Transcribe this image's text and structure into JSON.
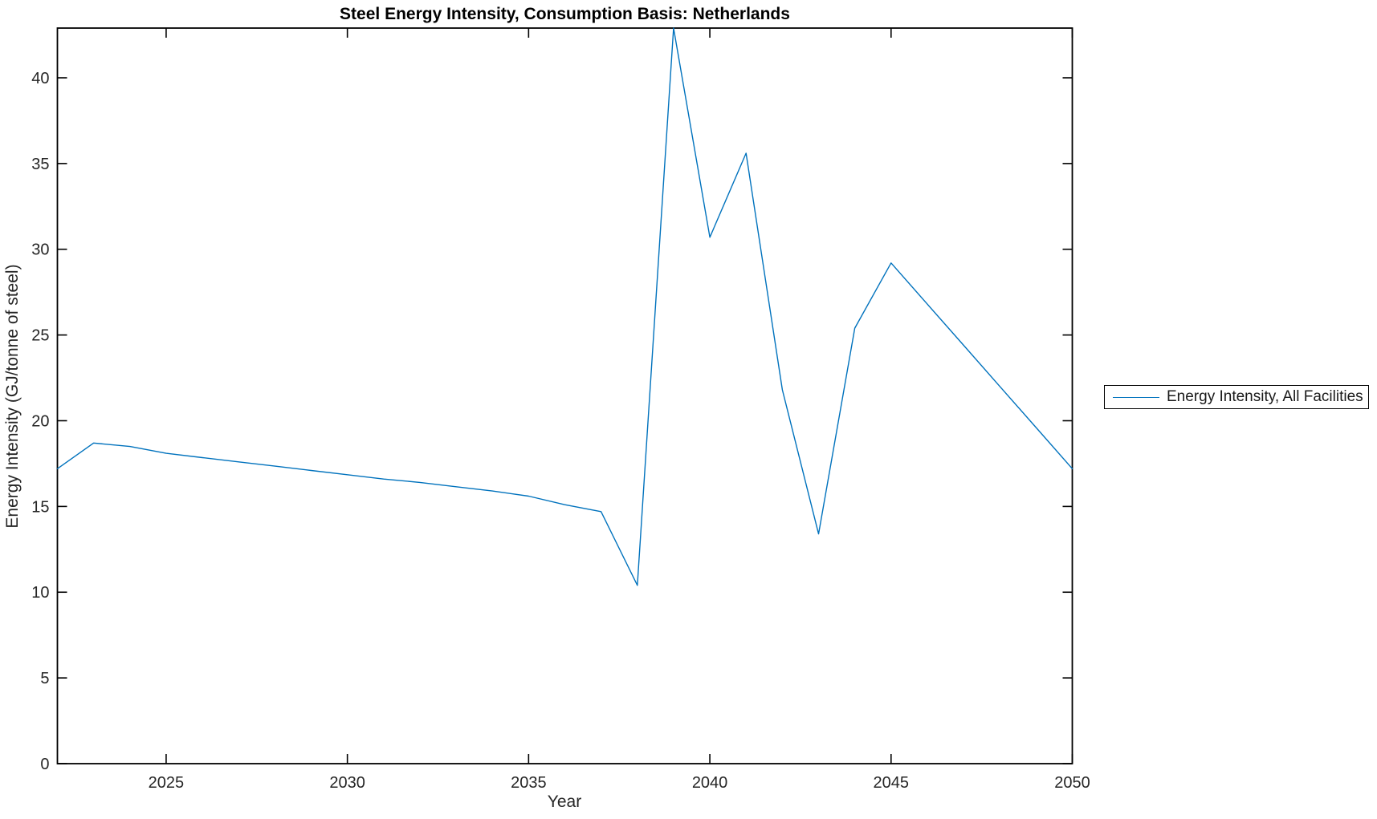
{
  "figure": {
    "background": "#ffffff"
  },
  "colors": {
    "line": "#0072BD",
    "axis": "#000000",
    "tick_text": "#262626",
    "title_text": "#000000"
  },
  "legend": {
    "entries": [
      {
        "label": "Energy Intensity, All Facilities",
        "color": "#0072BD"
      }
    ],
    "position": "outside-right",
    "border": true
  },
  "chart_data": {
    "type": "line",
    "title": "Steel Energy Intensity, Consumption Basis: Netherlands",
    "xlabel": "Year",
    "ylabel": "Energy Intensity (GJ/tonne of steel)",
    "xlim": [
      2022,
      2050
    ],
    "ylim": [
      0,
      42.9
    ],
    "x_ticks": [
      2025,
      2030,
      2035,
      2040,
      2045,
      2050
    ],
    "y_ticks": [
      0,
      5,
      10,
      15,
      20,
      25,
      30,
      35,
      40
    ],
    "grid": false,
    "box": true,
    "legend_position": "outside-right",
    "series": [
      {
        "name": "Energy Intensity, All Facilities",
        "color": "#0072BD",
        "x": [
          2022,
          2023,
          2024,
          2025,
          2026,
          2027,
          2028,
          2029,
          2030,
          2031,
          2032,
          2033,
          2034,
          2035,
          2036,
          2037,
          2038,
          2039,
          2040,
          2041,
          2042,
          2043,
          2044,
          2045,
          2046,
          2047,
          2048,
          2049,
          2050
        ],
        "y": [
          17.2,
          18.7,
          18.5,
          18.1,
          17.85,
          17.6,
          17.35,
          17.1,
          16.85,
          16.6,
          16.4,
          16.15,
          15.9,
          15.6,
          15.1,
          14.7,
          10.4,
          42.9,
          30.7,
          35.6,
          21.8,
          13.4,
          25.4,
          29.2,
          26.8,
          24.4,
          22.0,
          19.6,
          17.2
        ]
      }
    ]
  }
}
